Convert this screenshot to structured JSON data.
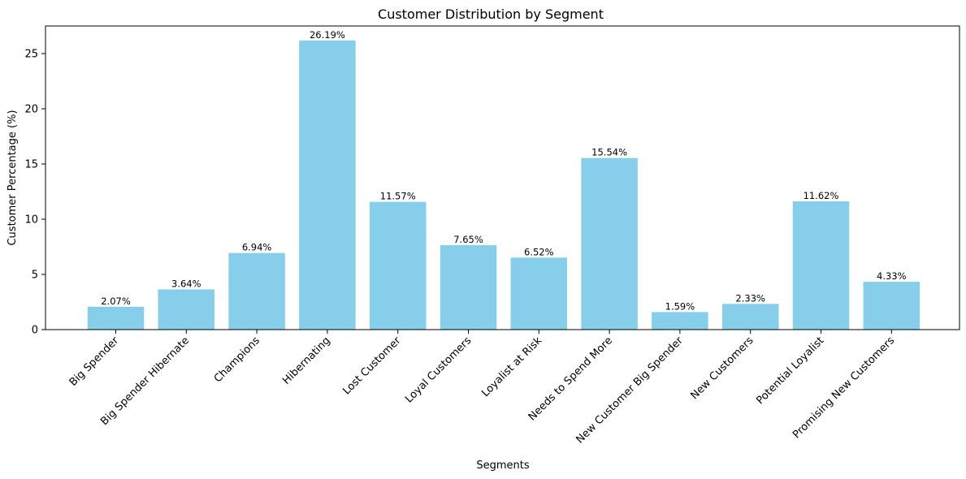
{
  "chart_data": {
    "type": "bar",
    "title": "Customer Distribution by Segment",
    "xlabel": "Segments",
    "ylabel": "Customer Percentage (%)",
    "categories": [
      "Big Spender",
      "Big Spender Hibernate",
      "Champions",
      "Hibernating",
      "Lost Customer",
      "Loyal Customers",
      "Loyalist at Risk",
      "Needs to Spend More",
      "New Customer Big Spender",
      "New Customers",
      "Potential Loyalist",
      "Promising New Customers"
    ],
    "values": [
      2.07,
      3.64,
      6.94,
      26.19,
      11.57,
      7.65,
      6.52,
      15.54,
      1.59,
      2.33,
      11.62,
      4.33
    ],
    "data_labels": [
      "2.07%",
      "3.64%",
      "6.94%",
      "26.19%",
      "11.57%",
      "7.65%",
      "6.52%",
      "15.54%",
      "1.59%",
      "2.33%",
      "11.62%",
      "4.33%"
    ],
    "ylim": [
      0,
      27.5
    ],
    "yticks": [
      0,
      5,
      10,
      15,
      20,
      25
    ],
    "grid": false,
    "bar_color": "#87ceeb"
  }
}
